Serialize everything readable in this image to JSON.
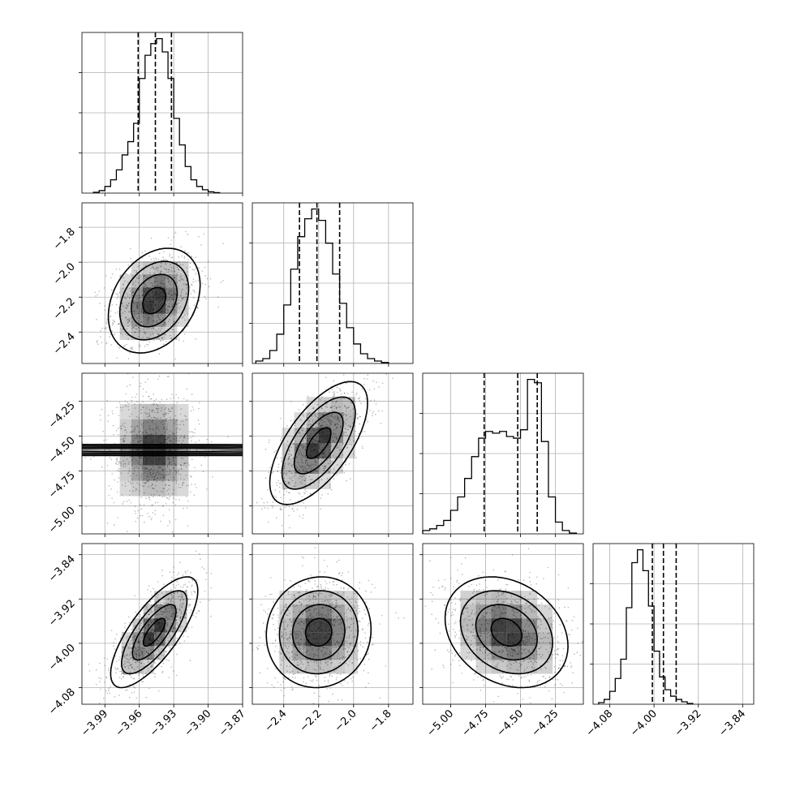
{
  "chart_data": {
    "type": "corner",
    "parameters": [
      {
        "range": [
          -4.01,
          -3.87
        ],
        "ticks": [
          -3.99,
          -3.96,
          -3.93,
          -3.9,
          -3.87
        ],
        "tick_labels": [
          "−3.99",
          "−3.96",
          "−3.93",
          "−3.90",
          "−3.87"
        ],
        "quantiles": [
          -3.961,
          -3.946,
          -3.932
        ],
        "hist": {
          "edges_start": -4.0,
          "bin_width": 0.005,
          "counts": [
            0.5,
            1.5,
            4,
            8,
            14,
            23,
            31,
            42,
            69,
            83,
            90,
            93,
            85,
            69,
            45,
            29,
            16,
            8,
            4,
            2,
            0.8,
            0.3
          ]
        }
      },
      {
        "range": [
          -2.58,
          -1.66
        ],
        "ticks": [
          -2.4,
          -2.2,
          -2.0,
          -1.8
        ],
        "tick_labels": [
          "−2.4",
          "−2.2",
          "−2.0",
          "−1.8"
        ],
        "quantiles": [
          -2.31,
          -2.21,
          -2.08
        ],
        "hist": {
          "edges_start": -2.56,
          "bin_width": 0.04,
          "counts": [
            1.5,
            3,
            8,
            18,
            36,
            58,
            78,
            89,
            95,
            88,
            74,
            55,
            37,
            22,
            12,
            6,
            3,
            1.5,
            0.6
          ]
        }
      },
      {
        "range": [
          -5.2,
          -4.05
        ],
        "ticks": [
          -5.0,
          -4.75,
          -4.5,
          -4.25
        ],
        "tick_labels": [
          "−5.00",
          "−4.75",
          "−4.50",
          "−4.25"
        ],
        "quantiles": [
          -4.76,
          -4.52,
          -4.38
        ],
        "hist": {
          "edges_start": -5.2,
          "bin_width": 0.05,
          "counts": [
            2,
            3,
            5,
            8,
            14,
            22,
            33,
            46,
            57,
            61,
            60,
            61,
            58,
            57,
            62,
            92,
            90,
            55,
            22,
            7,
            2,
            0.5
          ]
        }
      },
      {
        "range": [
          -4.11,
          -3.82
        ],
        "ticks": [
          -4.08,
          -4.0,
          -3.92,
          -3.84
        ],
        "tick_labels": [
          "−4.08",
          "−4.00",
          "−3.92",
          "−3.84"
        ],
        "quantiles": [
          -4.003,
          -3.983,
          -3.96
        ],
        "hist": {
          "edges_start": -4.1,
          "bin_width": 0.01,
          "counts": [
            1,
            3,
            8,
            16,
            28,
            60,
            88,
            96,
            83,
            61,
            33,
            17,
            9,
            5,
            3,
            1.5,
            0.5
          ]
        }
      }
    ],
    "pairs": [
      {
        "row": 1,
        "col": 0,
        "center": [
          -3.947,
          -2.22
        ],
        "sd": [
          0.02,
          0.15
        ],
        "corr": 0.3
      },
      {
        "row": 2,
        "col": 0,
        "center": [
          -3.947,
          -4.6
        ],
        "sd": [
          0.02,
          0.22
        ],
        "corr": 0.0
      },
      {
        "row": 2,
        "col": 1,
        "center": [
          -2.2,
          -4.55
        ],
        "sd": [
          0.14,
          0.22
        ],
        "corr": 0.65
      },
      {
        "row": 3,
        "col": 0,
        "center": [
          -3.947,
          -3.98
        ],
        "sd": [
          0.019,
          0.05
        ],
        "corr": 0.75
      },
      {
        "row": 3,
        "col": 1,
        "center": [
          -2.2,
          -3.98
        ],
        "sd": [
          0.15,
          0.05
        ],
        "corr": 0.05
      },
      {
        "row": 3,
        "col": 2,
        "center": [
          -4.6,
          -3.98
        ],
        "sd": [
          0.22,
          0.05
        ],
        "corr": -0.25
      }
    ],
    "grid": true
  }
}
